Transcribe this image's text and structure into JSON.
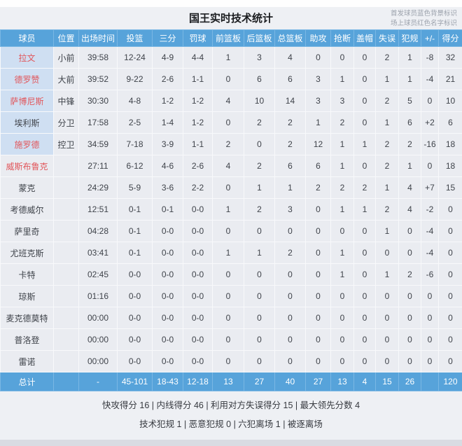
{
  "page": {
    "title": "国王实时技术统计",
    "legend_starter": "首发球员蓝色背景标识",
    "legend_oncourt": "场上球员红色名字标识"
  },
  "colors": {
    "header_blue": "#57a3da",
    "starter_bg": "#cfdff2",
    "oncourt_red": "#e1565b",
    "cell_bg": "#eaecf1",
    "card_bg": "#eef0f4"
  },
  "table": {
    "columns": [
      "球员",
      "位置",
      "出场时间",
      "投篮",
      "三分",
      "罚球",
      "前篮板",
      "后篮板",
      "总篮板",
      "助攻",
      "抢断",
      "盖帽",
      "失误",
      "犯规",
      "+/-",
      "得分"
    ],
    "column_keys": [
      "name",
      "pos",
      "time",
      "fg",
      "three",
      "ft",
      "orb",
      "drb",
      "trb",
      "ast",
      "stl",
      "blk",
      "to",
      "pf",
      "pm",
      "pts"
    ],
    "players": [
      {
        "name": "拉文",
        "pos": "小前",
        "time": "39:58",
        "fg": "12-24",
        "three": "4-9",
        "ft": "4-4",
        "orb": "1",
        "drb": "3",
        "trb": "4",
        "ast": "0",
        "stl": "0",
        "blk": "0",
        "to": "2",
        "pf": "1",
        "pm": "-8",
        "pts": "32",
        "starter": true,
        "oncourt": true
      },
      {
        "name": "德罗赞",
        "pos": "大前",
        "time": "39:52",
        "fg": "9-22",
        "three": "2-6",
        "ft": "1-1",
        "orb": "0",
        "drb": "6",
        "trb": "6",
        "ast": "3",
        "stl": "1",
        "blk": "0",
        "to": "1",
        "pf": "1",
        "pm": "-4",
        "pts": "21",
        "starter": true,
        "oncourt": true
      },
      {
        "name": "萨博尼斯",
        "pos": "中锋",
        "time": "30:30",
        "fg": "4-8",
        "three": "1-2",
        "ft": "1-2",
        "orb": "4",
        "drb": "10",
        "trb": "14",
        "ast": "3",
        "stl": "3",
        "blk": "0",
        "to": "2",
        "pf": "5",
        "pm": "0",
        "pts": "10",
        "starter": true,
        "oncourt": true
      },
      {
        "name": "埃利斯",
        "pos": "分卫",
        "time": "17:58",
        "fg": "2-5",
        "three": "1-4",
        "ft": "1-2",
        "orb": "0",
        "drb": "2",
        "trb": "2",
        "ast": "1",
        "stl": "2",
        "blk": "0",
        "to": "1",
        "pf": "6",
        "pm": "+2",
        "pts": "6",
        "starter": true,
        "oncourt": false
      },
      {
        "name": "施罗德",
        "pos": "控卫",
        "time": "34:59",
        "fg": "7-18",
        "three": "3-9",
        "ft": "1-1",
        "orb": "2",
        "drb": "0",
        "trb": "2",
        "ast": "12",
        "stl": "1",
        "blk": "1",
        "to": "2",
        "pf": "2",
        "pm": "-16",
        "pts": "18",
        "starter": true,
        "oncourt": true
      },
      {
        "name": "威斯布鲁克",
        "pos": "",
        "time": "27:11",
        "fg": "6-12",
        "three": "4-6",
        "ft": "2-6",
        "orb": "4",
        "drb": "2",
        "trb": "6",
        "ast": "6",
        "stl": "1",
        "blk": "0",
        "to": "2",
        "pf": "1",
        "pm": "0",
        "pts": "18",
        "starter": false,
        "oncourt": true
      },
      {
        "name": "蒙克",
        "pos": "",
        "time": "24:29",
        "fg": "5-9",
        "three": "3-6",
        "ft": "2-2",
        "orb": "0",
        "drb": "1",
        "trb": "1",
        "ast": "2",
        "stl": "2",
        "blk": "2",
        "to": "1",
        "pf": "4",
        "pm": "+7",
        "pts": "15",
        "starter": false,
        "oncourt": false
      },
      {
        "name": "考德威尔",
        "pos": "",
        "time": "12:51",
        "fg": "0-1",
        "three": "0-1",
        "ft": "0-0",
        "orb": "1",
        "drb": "2",
        "trb": "3",
        "ast": "0",
        "stl": "1",
        "blk": "1",
        "to": "2",
        "pf": "4",
        "pm": "-2",
        "pts": "0",
        "starter": false,
        "oncourt": false
      },
      {
        "name": "萨里奇",
        "pos": "",
        "time": "04:28",
        "fg": "0-1",
        "three": "0-0",
        "ft": "0-0",
        "orb": "0",
        "drb": "0",
        "trb": "0",
        "ast": "0",
        "stl": "0",
        "blk": "0",
        "to": "1",
        "pf": "0",
        "pm": "-4",
        "pts": "0",
        "starter": false,
        "oncourt": false
      },
      {
        "name": "尤班克斯",
        "pos": "",
        "time": "03:41",
        "fg": "0-1",
        "three": "0-0",
        "ft": "0-0",
        "orb": "1",
        "drb": "1",
        "trb": "2",
        "ast": "0",
        "stl": "1",
        "blk": "0",
        "to": "0",
        "pf": "0",
        "pm": "-4",
        "pts": "0",
        "starter": false,
        "oncourt": false
      },
      {
        "name": "卡特",
        "pos": "",
        "time": "02:45",
        "fg": "0-0",
        "three": "0-0",
        "ft": "0-0",
        "orb": "0",
        "drb": "0",
        "trb": "0",
        "ast": "0",
        "stl": "1",
        "blk": "0",
        "to": "1",
        "pf": "2",
        "pm": "-6",
        "pts": "0",
        "starter": false,
        "oncourt": false
      },
      {
        "name": "琼斯",
        "pos": "",
        "time": "01:16",
        "fg": "0-0",
        "three": "0-0",
        "ft": "0-0",
        "orb": "0",
        "drb": "0",
        "trb": "0",
        "ast": "0",
        "stl": "0",
        "blk": "0",
        "to": "0",
        "pf": "0",
        "pm": "0",
        "pts": "0",
        "starter": false,
        "oncourt": false
      },
      {
        "name": "麦克德莫特",
        "pos": "",
        "time": "00:00",
        "fg": "0-0",
        "three": "0-0",
        "ft": "0-0",
        "orb": "0",
        "drb": "0",
        "trb": "0",
        "ast": "0",
        "stl": "0",
        "blk": "0",
        "to": "0",
        "pf": "0",
        "pm": "0",
        "pts": "0",
        "starter": false,
        "oncourt": false
      },
      {
        "name": "普洛登",
        "pos": "",
        "time": "00:00",
        "fg": "0-0",
        "three": "0-0",
        "ft": "0-0",
        "orb": "0",
        "drb": "0",
        "trb": "0",
        "ast": "0",
        "stl": "0",
        "blk": "0",
        "to": "0",
        "pf": "0",
        "pm": "0",
        "pts": "0",
        "starter": false,
        "oncourt": false
      },
      {
        "name": "雷诺",
        "pos": "",
        "time": "00:00",
        "fg": "0-0",
        "three": "0-0",
        "ft": "0-0",
        "orb": "0",
        "drb": "0",
        "trb": "0",
        "ast": "0",
        "stl": "0",
        "blk": "0",
        "to": "0",
        "pf": "0",
        "pm": "0",
        "pts": "0",
        "starter": false,
        "oncourt": false
      }
    ],
    "total": {
      "name": "总计",
      "pos": "",
      "time": "-",
      "fg": "45-101",
      "three": "18-43",
      "ft": "12-18",
      "orb": "13",
      "drb": "27",
      "trb": "40",
      "ast": "27",
      "stl": "13",
      "blk": "4",
      "to": "15",
      "pf": "26",
      "pm": "",
      "pts": "120"
    }
  },
  "footer": {
    "line1": [
      {
        "label": "快攻得分",
        "value": "16"
      },
      {
        "label": "内线得分",
        "value": "46"
      },
      {
        "label": "利用对方失误得分",
        "value": "15"
      },
      {
        "label": "最大领先分数",
        "value": "4"
      }
    ],
    "line2": [
      {
        "label": "技术犯规",
        "value": "1"
      },
      {
        "label": "恶意犯规",
        "value": "0"
      },
      {
        "label": "六犯离场",
        "value": "1"
      },
      {
        "label": "被逐离场",
        "value": ""
      }
    ]
  }
}
